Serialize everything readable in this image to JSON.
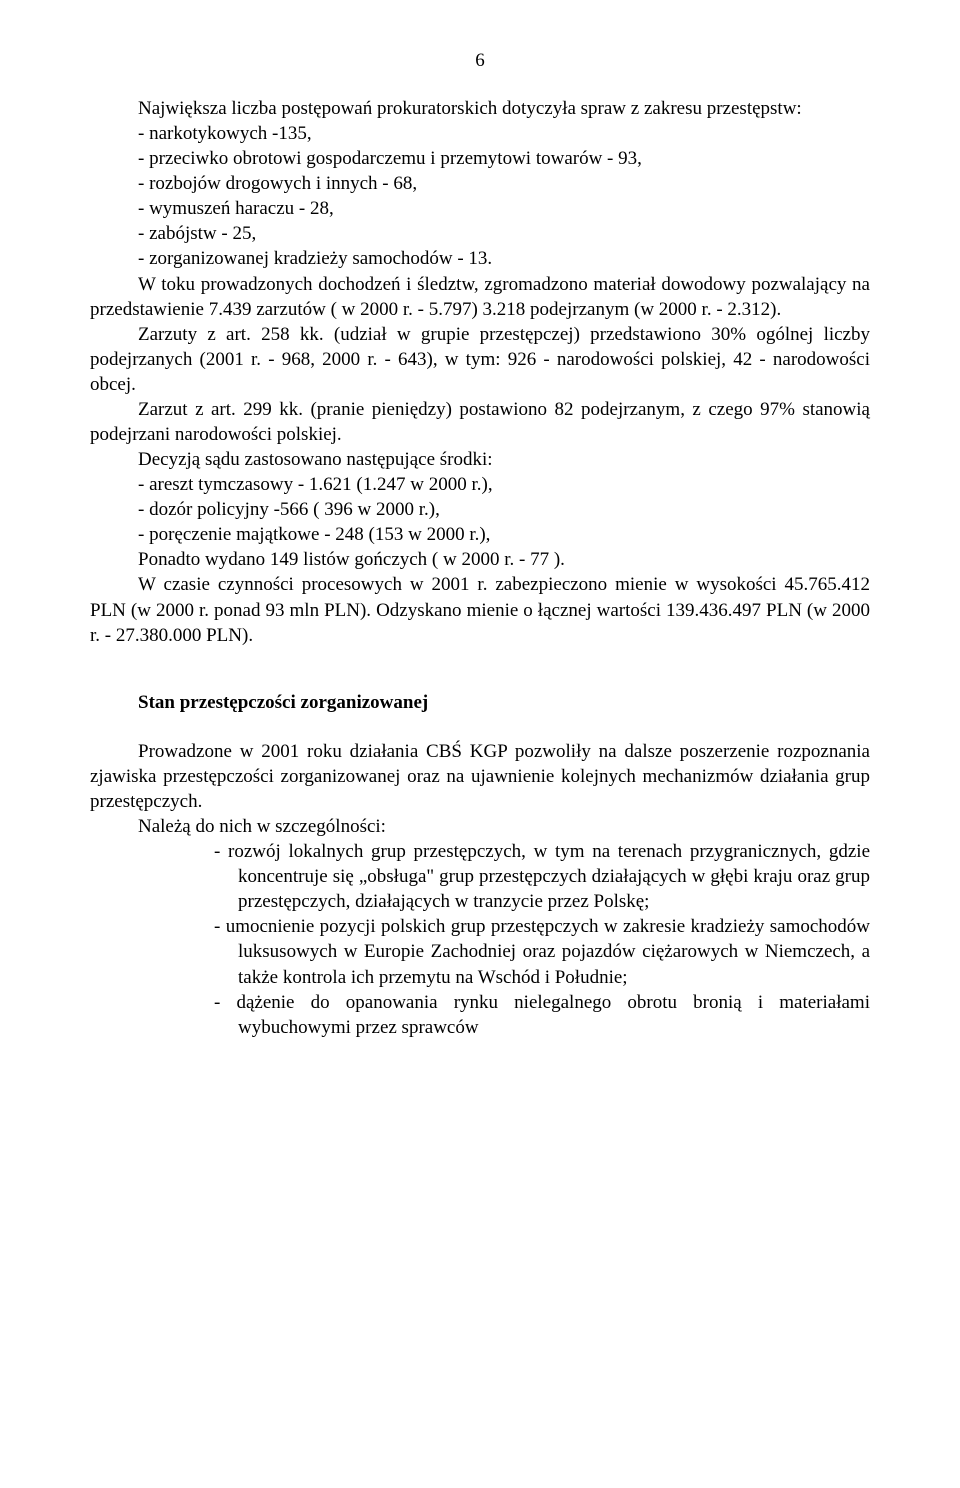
{
  "page_number": "6",
  "p1": "Największa liczba postępowań prokuratorskich dotyczyła spraw z zakresu przestępstw:",
  "li1": "-  narkotykowych -135,",
  "li2": "-  przeciwko obrotowi gospodarczemu i przemytowi towarów - 93,",
  "li3": "-  rozbojów drogowych i innych - 68,",
  "li4": "-  wymuszeń haraczu - 28,",
  "li5": "-  zabójstw - 25,",
  "li6": "-  zorganizowanej kradzieży samochodów - 13.",
  "p2": "W toku prowadzonych dochodzeń i śledztw, zgromadzono materiał dowodowy pozwalający  na przedstawienie 7.439 zarzutów ( w 2000 r. - 5.797) 3.218 podejrzanym  (w 2000 r. - 2.312).",
  "p3": "Zarzuty z art. 258 kk. (udział w grupie przestępczej) przedstawiono 30% ogólnej liczby  podejrzanych (2001 r.  - 968, 2000 r.  - 643), w tym: 926 - narodowości polskiej, 42 - narodowości obcej.",
  "p4": "Zarzut z art. 299 kk. (pranie pieniędzy) postawiono 82 podejrzanym, z czego 97% stanowią podejrzani narodowości polskiej.",
  "p5": "Decyzją sądu zastosowano następujące środki:",
  "li7": "-   areszt tymczasowy - 1.621 (1.247 w 2000 r.),",
  "li8": "-   dozór policyjny -566 ( 396 w 2000 r.),",
  "li9": "-   poręczenie majątkowe - 248 (153 w 2000 r.),",
  "p6": "Ponadto wydano 149 listów gończych ( w 2000 r. - 77 ).",
  "p7": "W czasie czynności procesowych w 2001 r. zabezpieczono mienie w wysokości 45.765.412  PLN (w 2000 r. ponad 93 mln PLN). Odzyskano mienie o łącznej wartości 139.436.497  PLN (w 2000 r. - 27.380.000 PLN).",
  "h1": "Stan przestępczości zorganizowanej",
  "p8": "Prowadzone w 2001 roku działania CBŚ KGP pozwoliły na dalsze poszerzenie rozpoznania zjawiska przestępczości zorganizowanej oraz na ujawnienie kolejnych mechanizmów działania  grup przestępczych.",
  "p9": "Należą do nich w szczególności:",
  "li10": "-  rozwój lokalnych grup przestępczych, w tym na terenach przygranicznych, gdzie  koncentruje się „obsługa\" grup przestępczych działających w głębi kraju oraz grup przestępczych, działających w tranzycie przez Polskę;",
  "li11": "-  umocnienie pozycji polskich grup przestępczych w zakresie kradzieży samochodów luksusowych w Europie Zachodniej oraz pojazdów ciężarowych w Niemczech, a także  kontrola ich przemytu na Wschód i Południe;",
  "li12": "-  dążenie do opanowania rynku nielegalnego obrotu bronią i materiałami wybuchowymi przez sprawców"
}
